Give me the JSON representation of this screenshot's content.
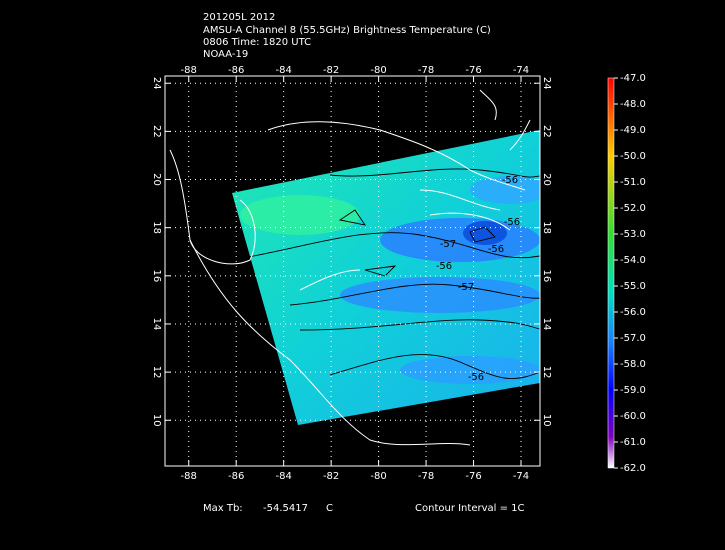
{
  "header": {
    "lines": [
      "201205L 2012",
      "AMSU-A Channel 8 (55.5GHz) Brightness Temperature (C)",
      "0806 Time: 1820 UTC",
      "NOAA-19"
    ]
  },
  "map": {
    "xlim": [
      -89,
      -73.2
    ],
    "ylim": [
      8.1,
      24.3
    ],
    "xticks": [
      -88,
      -86,
      -84,
      -82,
      -80,
      -78,
      -76,
      -74
    ],
    "yticks": [
      10,
      12,
      14,
      16,
      18,
      20,
      22,
      24
    ],
    "grid": true,
    "contour_labels": [
      "-56",
      "-56",
      "-57",
      "-56",
      "-56",
      "-57",
      "-56"
    ]
  },
  "colorbar": {
    "lim": [
      -62,
      -47
    ],
    "ticks": [
      {
        "value": -47,
        "label": "-47.0"
      },
      {
        "value": -48,
        "label": "-48.0"
      },
      {
        "value": -49,
        "label": "-49.0"
      },
      {
        "value": -50,
        "label": "-50.0"
      },
      {
        "value": -51,
        "label": "-51.0"
      },
      {
        "value": -52,
        "label": "-52.0"
      },
      {
        "value": -53,
        "label": "-53.0"
      },
      {
        "value": -54,
        "label": "-54.0"
      },
      {
        "value": -55,
        "label": "-55.0"
      },
      {
        "value": -56,
        "label": "-56.0"
      },
      {
        "value": -57,
        "label": "-57.0"
      },
      {
        "value": -58,
        "label": "-58.0"
      },
      {
        "value": -59,
        "label": "-59.0"
      },
      {
        "value": -60,
        "label": "-60.0"
      },
      {
        "value": -61,
        "label": "-61.0"
      },
      {
        "value": -62,
        "label": "-62.0"
      }
    ]
  },
  "footer": {
    "max_tb_label": "Max Tb:",
    "max_tb_value": -54.5417,
    "max_tb_unit": "C",
    "contour_interval": "Contour Interval = 1C"
  }
}
